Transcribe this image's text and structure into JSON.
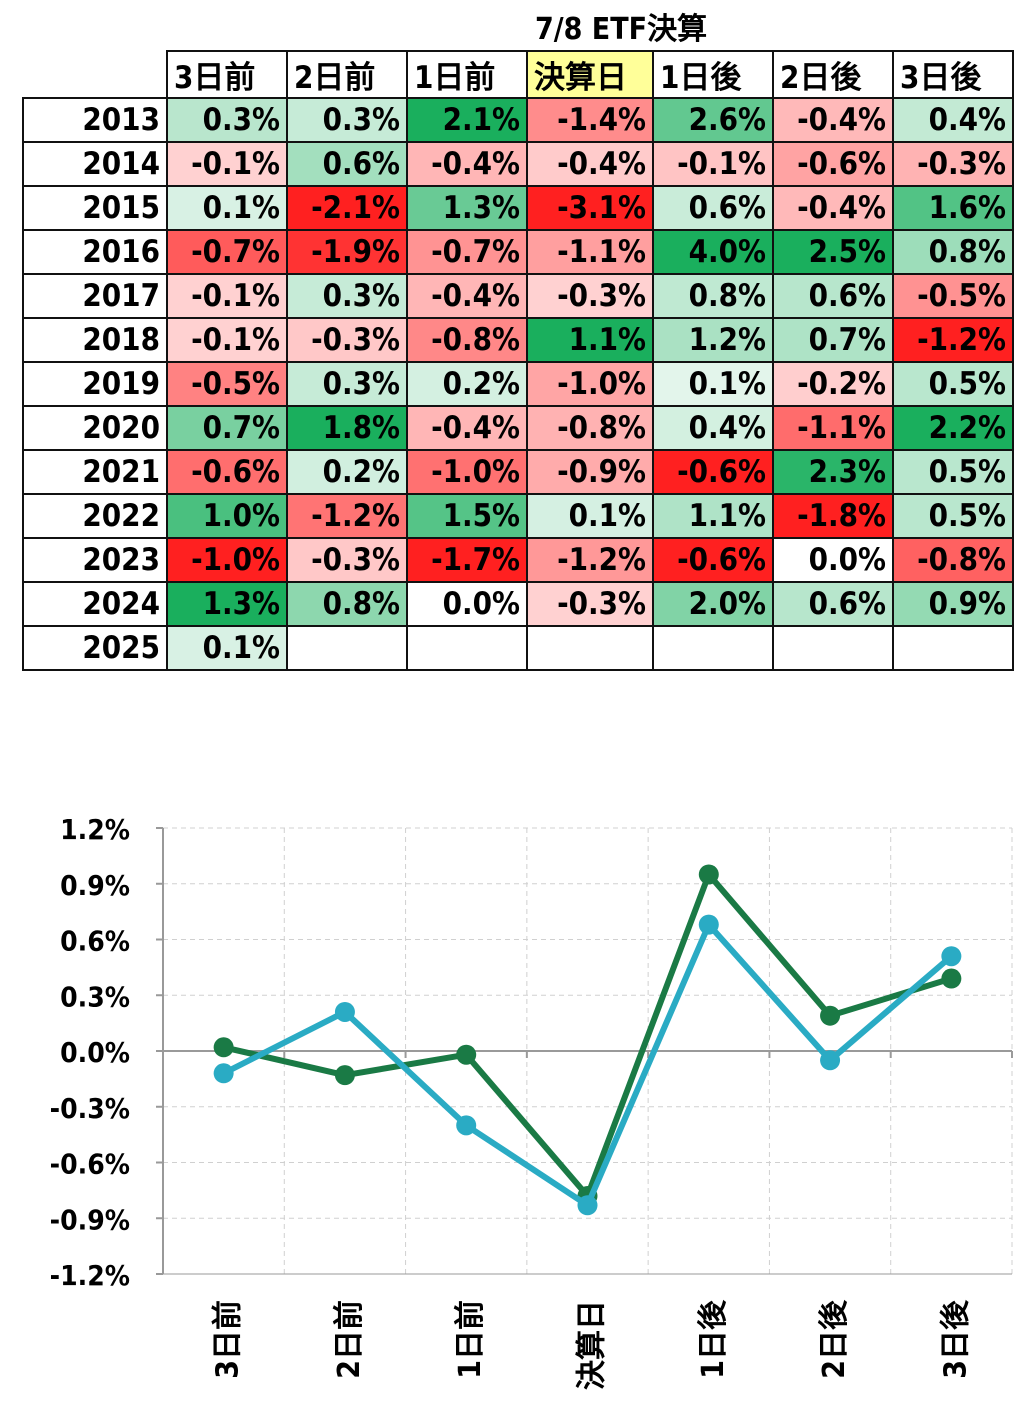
{
  "title": "7/8 ETF決算",
  "table": {
    "columns": [
      "3日前",
      "2日前",
      "1日前",
      "決算日",
      "1日後",
      "2日後",
      "3日後"
    ],
    "highlight_column": "決算日",
    "rows": [
      {
        "year": "2013",
        "values": [
          "0.3%",
          "0.3%",
          "2.1%",
          "-1.4%",
          "2.6%",
          "-0.4%",
          "0.4%"
        ]
      },
      {
        "year": "2014",
        "values": [
          "-0.1%",
          "0.6%",
          "-0.4%",
          "-0.4%",
          "-0.1%",
          "-0.6%",
          "-0.3%"
        ]
      },
      {
        "year": "2015",
        "values": [
          "0.1%",
          "-2.1%",
          "1.3%",
          "-3.1%",
          "0.6%",
          "-0.4%",
          "1.6%"
        ]
      },
      {
        "year": "2016",
        "values": [
          "-0.7%",
          "-1.9%",
          "-0.7%",
          "-1.1%",
          "4.0%",
          "2.5%",
          "0.8%"
        ]
      },
      {
        "year": "2017",
        "values": [
          "-0.1%",
          "0.3%",
          "-0.4%",
          "-0.3%",
          "0.8%",
          "0.6%",
          "-0.5%"
        ]
      },
      {
        "year": "2018",
        "values": [
          "-0.1%",
          "-0.3%",
          "-0.8%",
          "1.1%",
          "1.2%",
          "0.7%",
          "-1.2%"
        ]
      },
      {
        "year": "2019",
        "values": [
          "-0.5%",
          "0.3%",
          "0.2%",
          "-1.0%",
          "0.1%",
          "-0.2%",
          "0.5%"
        ]
      },
      {
        "year": "2020",
        "values": [
          "0.7%",
          "1.8%",
          "-0.4%",
          "-0.8%",
          "0.4%",
          "-1.1%",
          "2.2%"
        ]
      },
      {
        "year": "2021",
        "values": [
          "-0.6%",
          "0.2%",
          "-1.0%",
          "-0.9%",
          "-0.6%",
          "2.3%",
          "0.5%"
        ]
      },
      {
        "year": "2022",
        "values": [
          "1.0%",
          "-1.2%",
          "1.5%",
          "0.1%",
          "1.1%",
          "-1.8%",
          "0.5%"
        ]
      },
      {
        "year": "2023",
        "values": [
          "-1.0%",
          "-0.3%",
          "-1.7%",
          "-1.2%",
          "-0.6%",
          "0.0%",
          "-0.8%"
        ]
      },
      {
        "year": "2024",
        "values": [
          "1.3%",
          "0.8%",
          "0.0%",
          "-0.3%",
          "2.0%",
          "0.6%",
          "0.9%"
        ]
      },
      {
        "year": "2025",
        "values": [
          "0.1%",
          "",
          "",
          "",
          "",
          "",
          ""
        ]
      }
    ]
  },
  "colors": {
    "positive_max": "#1aaf5d",
    "negative_max": "#ff2020",
    "neutral": "#ffffff",
    "highlight": "#ffff99",
    "series_1": "#1a7a45",
    "series_2": "#2aabc4",
    "grid": "#d0d0d0",
    "zero_line": "#9a9a9a"
  },
  "chart_data": {
    "type": "line",
    "categories": [
      "3日前",
      "2日前",
      "1日前",
      "決算日",
      "1日後",
      "2日後",
      "3日後"
    ],
    "series": [
      {
        "color": "#1a7a45",
        "values": [
          0.02,
          -0.13,
          -0.02,
          -0.78,
          0.95,
          0.19,
          0.39
        ]
      },
      {
        "color": "#2aabc4",
        "values": [
          -0.12,
          0.21,
          -0.4,
          -0.83,
          0.68,
          -0.05,
          0.51
        ]
      }
    ],
    "ylim": [
      -1.2,
      1.2
    ],
    "yticks": [
      "1.2%",
      "0.9%",
      "0.6%",
      "0.3%",
      "0.0%",
      "-0.3%",
      "-0.6%",
      "-0.9%",
      "-1.2%"
    ],
    "grid": true,
    "legend": "none"
  }
}
